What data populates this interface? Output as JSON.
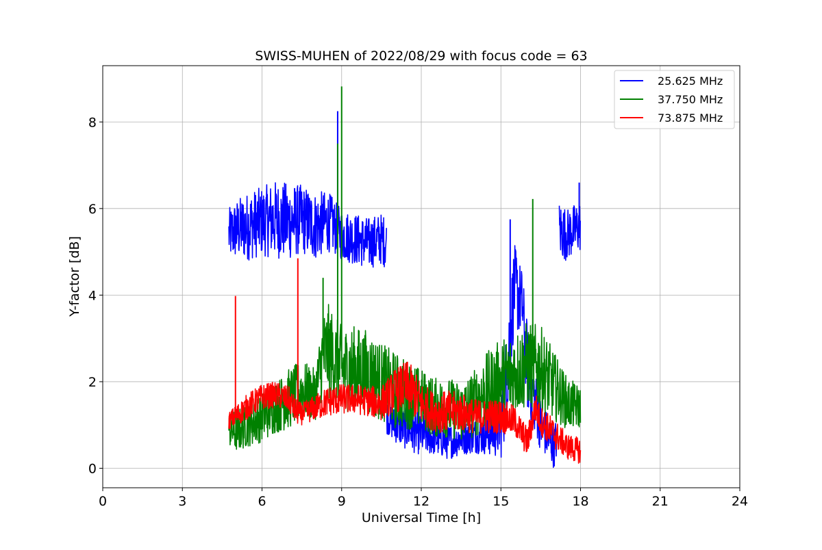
{
  "chart_data": {
    "type": "line",
    "title": "SWISS-MUHEN of 2022/08/29 with focus code = 63",
    "xlabel": "Universal Time [h]",
    "ylabel": "Y-factor [dB]",
    "xlim": [
      0,
      24
    ],
    "ylim": [
      -0.45,
      9.3
    ],
    "xticks": [
      0,
      3,
      6,
      9,
      12,
      15,
      18,
      21,
      24
    ],
    "xtick_labels": [
      "0",
      "3",
      "6",
      "9",
      "12",
      "15",
      "18",
      "21",
      "24"
    ],
    "yticks": [
      0,
      2,
      4,
      6,
      8
    ],
    "ytick_labels": [
      "0",
      "2",
      "4",
      "6",
      "8"
    ],
    "grid": true,
    "legend_position": "top-right",
    "series": [
      {
        "name": "25.625 MHz",
        "color": "#0000ff",
        "segments": [
          {
            "x": [
              4.75,
              5.0,
              5.5,
              6.0,
              6.5,
              7.0,
              7.5,
              8.0,
              8.5,
              8.85,
              9.0,
              9.5,
              10.0,
              10.5,
              10.7
            ],
            "y_center": [
              5.4,
              5.5,
              5.6,
              5.7,
              5.75,
              5.7,
              5.75,
              5.6,
              5.7,
              5.5,
              5.4,
              5.3,
              5.2,
              5.3,
              5.2
            ],
            "y_amp": [
              0.6,
              0.7,
              0.8,
              0.8,
              0.9,
              0.9,
              0.8,
              0.8,
              0.7,
              0.6,
              0.6,
              0.6,
              0.6,
              0.6,
              0.6
            ]
          },
          {
            "x": [
              10.7,
              11.0,
              11.5,
              12.0,
              12.5,
              13.0,
              13.5,
              14.0,
              14.5,
              15.0,
              15.2,
              15.5,
              15.8,
              16.0,
              16.5,
              17.0,
              17.1
            ],
            "y_center": [
              1.2,
              1.0,
              0.9,
              0.8,
              0.7,
              0.6,
              0.7,
              0.75,
              0.8,
              1.0,
              2.0,
              4.2,
              3.8,
              2.3,
              1.0,
              0.5,
              0.7
            ],
            "y_amp": [
              0.4,
              0.4,
              0.5,
              0.5,
              0.4,
              0.4,
              0.4,
              0.4,
              0.5,
              0.8,
              1.2,
              1.0,
              0.8,
              1.0,
              0.6,
              0.5,
              0.5
            ]
          },
          {
            "x": [
              17.2,
              17.5,
              18.0
            ],
            "y_center": [
              5.5,
              5.4,
              5.6
            ],
            "y_amp": [
              0.7,
              0.6,
              0.6
            ]
          }
        ],
        "spikes": [
          {
            "x": 8.85,
            "y": 8.25
          },
          {
            "x": 15.35,
            "y": 5.75
          },
          {
            "x": 17.95,
            "y": 6.6
          }
        ]
      },
      {
        "name": "37.750 MHz",
        "color": "#008000",
        "segments": [
          {
            "x": [
              4.75,
              5.0,
              5.5,
              6.0,
              6.5,
              7.0,
              7.5,
              8.0,
              8.3,
              8.5,
              9.0,
              9.5,
              10.0,
              10.5,
              11.0,
              11.5,
              12.0,
              12.5,
              13.0,
              13.5,
              14.0,
              14.5,
              15.0,
              15.5,
              16.0,
              16.5,
              17.0,
              17.5,
              18.0
            ],
            "y_center": [
              0.9,
              0.85,
              1.0,
              1.2,
              1.4,
              1.6,
              1.8,
              1.7,
              2.6,
              2.7,
              2.3,
              2.3,
              2.2,
              2.0,
              1.8,
              1.7,
              1.6,
              1.4,
              1.4,
              1.3,
              1.5,
              1.8,
              2.0,
              2.2,
              2.4,
              2.3,
              1.9,
              1.5,
              1.4
            ],
            "y_amp": [
              0.4,
              0.5,
              0.5,
              0.6,
              0.6,
              0.7,
              0.7,
              0.6,
              1.0,
              1.1,
              1.0,
              1.0,
              1.0,
              0.9,
              0.9,
              0.8,
              0.7,
              0.7,
              0.7,
              0.7,
              0.8,
              0.9,
              1.0,
              1.0,
              1.0,
              1.0,
              0.8,
              0.6,
              0.5
            ]
          }
        ],
        "spikes": [
          {
            "x": 9.0,
            "y": 8.82
          },
          {
            "x": 8.85,
            "y": 7.5
          },
          {
            "x": 8.3,
            "y": 4.4
          },
          {
            "x": 16.2,
            "y": 6.22
          }
        ]
      },
      {
        "name": "73.875 MHz",
        "color": "#ff0000",
        "segments": [
          {
            "x": [
              4.75,
              5.0,
              5.5,
              6.0,
              6.5,
              7.0,
              7.3,
              7.5,
              8.0,
              8.5,
              9.0,
              9.5,
              10.0,
              10.5,
              11.0,
              11.5,
              12.0,
              12.5,
              13.0,
              13.5,
              14.0,
              14.5,
              15.0,
              15.5,
              16.0,
              16.3,
              16.5,
              17.0,
              17.5,
              18.0
            ],
            "y_center": [
              1.1,
              1.2,
              1.45,
              1.65,
              1.7,
              1.6,
              1.3,
              1.25,
              1.4,
              1.55,
              1.6,
              1.6,
              1.55,
              1.5,
              1.8,
              1.9,
              1.5,
              1.3,
              1.3,
              1.3,
              1.2,
              1.2,
              1.2,
              1.1,
              0.6,
              1.4,
              1.1,
              0.8,
              0.5,
              0.4
            ],
            "y_amp": [
              0.2,
              0.25,
              0.3,
              0.3,
              0.3,
              0.3,
              0.3,
              0.25,
              0.3,
              0.35,
              0.35,
              0.35,
              0.35,
              0.4,
              0.5,
              0.6,
              0.5,
              0.45,
              0.5,
              0.45,
              0.4,
              0.4,
              0.4,
              0.35,
              0.35,
              0.35,
              0.35,
              0.35,
              0.3,
              0.3
            ]
          }
        ],
        "spikes": [
          {
            "x": 5.0,
            "y": 3.98
          },
          {
            "x": 7.35,
            "y": 4.85
          }
        ]
      }
    ]
  }
}
